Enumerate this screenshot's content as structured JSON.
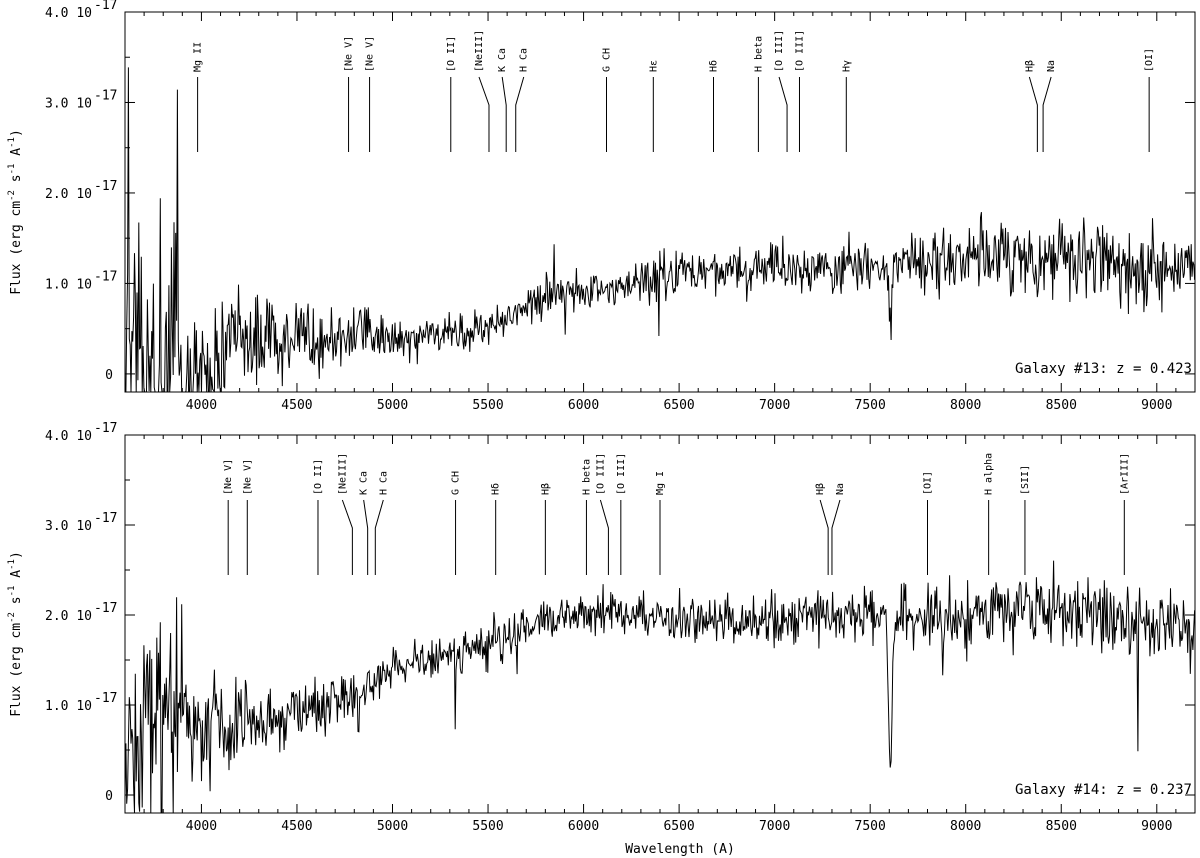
{
  "chart_data": [
    {
      "type": "line",
      "label": "Galaxy #13:  z = 0.423",
      "x_range": [
        3600,
        9200
      ],
      "y_range": [
        -0.2,
        4.0
      ],
      "y_unit_exp": "-17",
      "xticks": [
        4000,
        4500,
        5000,
        5500,
        6000,
        6500,
        7000,
        7500,
        8000,
        8500,
        9000
      ],
      "yticks": [
        {
          "v": 0,
          "label": "0"
        },
        {
          "v": 1.0,
          "label": "1.0 10"
        },
        {
          "v": 2.0,
          "label": "2.0 10"
        },
        {
          "v": 3.0,
          "label": "3.0 10"
        },
        {
          "v": 4.0,
          "label": "4.0 10"
        }
      ],
      "continuum": [
        [
          3600,
          0.0
        ],
        [
          3800,
          0.0
        ],
        [
          4000,
          0.0
        ],
        [
          4200,
          0.35
        ],
        [
          4500,
          0.4
        ],
        [
          5000,
          0.42
        ],
        [
          5300,
          0.42
        ],
        [
          5500,
          0.5
        ],
        [
          5700,
          0.78
        ],
        [
          6000,
          0.92
        ],
        [
          6500,
          1.12
        ],
        [
          7000,
          1.18
        ],
        [
          7300,
          1.15
        ],
        [
          7600,
          1.2
        ],
        [
          8000,
          1.3
        ],
        [
          8500,
          1.3
        ],
        [
          9000,
          1.15
        ],
        [
          9200,
          1.22
        ]
      ],
      "noise_sigma": [
        [
          3600,
          0.6
        ],
        [
          3800,
          0.55
        ],
        [
          4100,
          0.3
        ],
        [
          5000,
          0.12
        ],
        [
          6000,
          0.12
        ],
        [
          7500,
          0.16
        ],
        [
          8500,
          0.22
        ],
        [
          9200,
          0.22
        ]
      ],
      "absorptions": [
        {
          "x": 7605,
          "depth": 0.85,
          "width": 12
        },
        {
          "x": 8370,
          "depth": 0.4,
          "width": 8
        }
      ],
      "lines": [
        {
          "label": "Mg II",
          "x": 3980
        },
        {
          "label": "[Ne V]",
          "x": 4770
        },
        {
          "label": "[Ne V]",
          "x": 4880
        },
        {
          "label": "[O II]",
          "x": 5305
        },
        {
          "label": "[NeIII]",
          "x": 5505,
          "bend": -10
        },
        {
          "label": "K Ca",
          "x": 5595,
          "bend": -4
        },
        {
          "label": "H Ca",
          "x": 5645,
          "bend": 8
        },
        {
          "label": "G CH",
          "x": 6120
        },
        {
          "label": "Hε",
          "x": 6365
        },
        {
          "label": "Hδ",
          "x": 6680
        },
        {
          "label": "H beta",
          "x": 6915
        },
        {
          "label": "[O III]",
          "x": 7065,
          "bend": -8
        },
        {
          "label": "[O III]",
          "x": 7130
        },
        {
          "label": "Hγ",
          "x": 7375
        },
        {
          "label": "Hβ",
          "x": 8375,
          "bend": -8
        },
        {
          "label": "Na",
          "x": 8405,
          "bend": 8
        },
        {
          "label": "[OI]",
          "x": 8960
        }
      ]
    },
    {
      "type": "line",
      "label": "Galaxy #14:  z = 0.237",
      "x_range": [
        3600,
        9200
      ],
      "y_range": [
        -0.2,
        4.0
      ],
      "y_unit_exp": "-17",
      "xticks": [
        4000,
        4500,
        5000,
        5500,
        6000,
        6500,
        7000,
        7500,
        8000,
        8500,
        9000
      ],
      "yticks": [
        {
          "v": 0,
          "label": "0"
        },
        {
          "v": 1.0,
          "label": "1.0 10"
        },
        {
          "v": 2.0,
          "label": "2.0 10"
        },
        {
          "v": 3.0,
          "label": "3.0 10"
        },
        {
          "v": 4.0,
          "label": "4.0 10"
        }
      ],
      "continuum": [
        [
          3600,
          0.6
        ],
        [
          3900,
          0.8
        ],
        [
          4300,
          0.75
        ],
        [
          4600,
          0.95
        ],
        [
          4800,
          1.1
        ],
        [
          5000,
          1.4
        ],
        [
          5500,
          1.65
        ],
        [
          5800,
          1.95
        ],
        [
          6000,
          2.0
        ],
        [
          6500,
          1.95
        ],
        [
          7000,
          1.92
        ],
        [
          7500,
          2.0
        ],
        [
          8000,
          1.95
        ],
        [
          8300,
          2.1
        ],
        [
          8600,
          2.0
        ],
        [
          9200,
          1.8
        ]
      ],
      "noise_sigma": [
        [
          3600,
          0.6
        ],
        [
          3800,
          0.5
        ],
        [
          4000,
          0.28
        ],
        [
          5000,
          0.12
        ],
        [
          6000,
          0.13
        ],
        [
          7500,
          0.15
        ],
        [
          8500,
          0.22
        ],
        [
          9200,
          0.18
        ]
      ],
      "absorptions": [
        {
          "x": 7605,
          "depth": 1.6,
          "width": 14
        },
        {
          "x": 7880,
          "depth": 0.9,
          "width": 4
        },
        {
          "x": 8900,
          "depth": 1.0,
          "width": 4
        }
      ],
      "lines": [
        {
          "label": "[Ne V]",
          "x": 4140
        },
        {
          "label": "[Ne V]",
          "x": 4240
        },
        {
          "label": "[O II]",
          "x": 4610
        },
        {
          "label": "[NeIII]",
          "x": 4790,
          "bend": -10
        },
        {
          "label": "K Ca",
          "x": 4870,
          "bend": -4
        },
        {
          "label": "H Ca",
          "x": 4910,
          "bend": 8
        },
        {
          "label": "G CH",
          "x": 5330
        },
        {
          "label": "Hδ",
          "x": 5540
        },
        {
          "label": "Hβ",
          "x": 5800
        },
        {
          "label": "H beta",
          "x": 6015
        },
        {
          "label": "[O III]",
          "x": 6130,
          "bend": -8
        },
        {
          "label": "[O III]",
          "x": 6195
        },
        {
          "label": "Mg I",
          "x": 6400
        },
        {
          "label": "Hβ",
          "x": 7280,
          "bend": -8
        },
        {
          "label": "Na",
          "x": 7300,
          "bend": 8
        },
        {
          "label": "[OI]",
          "x": 7800
        },
        {
          "label": "H alpha",
          "x": 8120
        },
        {
          "label": "[SII]",
          "x": 8310
        },
        {
          "label": "[ArIII]",
          "x": 8830
        }
      ]
    }
  ],
  "ylabel": "Flux (erg cm",
  "ylabel_exp1": "-2",
  "ylabel_mid": " s",
  "ylabel_exp2": "-1",
  "ylabel_mid2": " A",
  "ylabel_exp3": "-1",
  "ylabel_end": ")",
  "xlabel": "Wavelength (A)"
}
